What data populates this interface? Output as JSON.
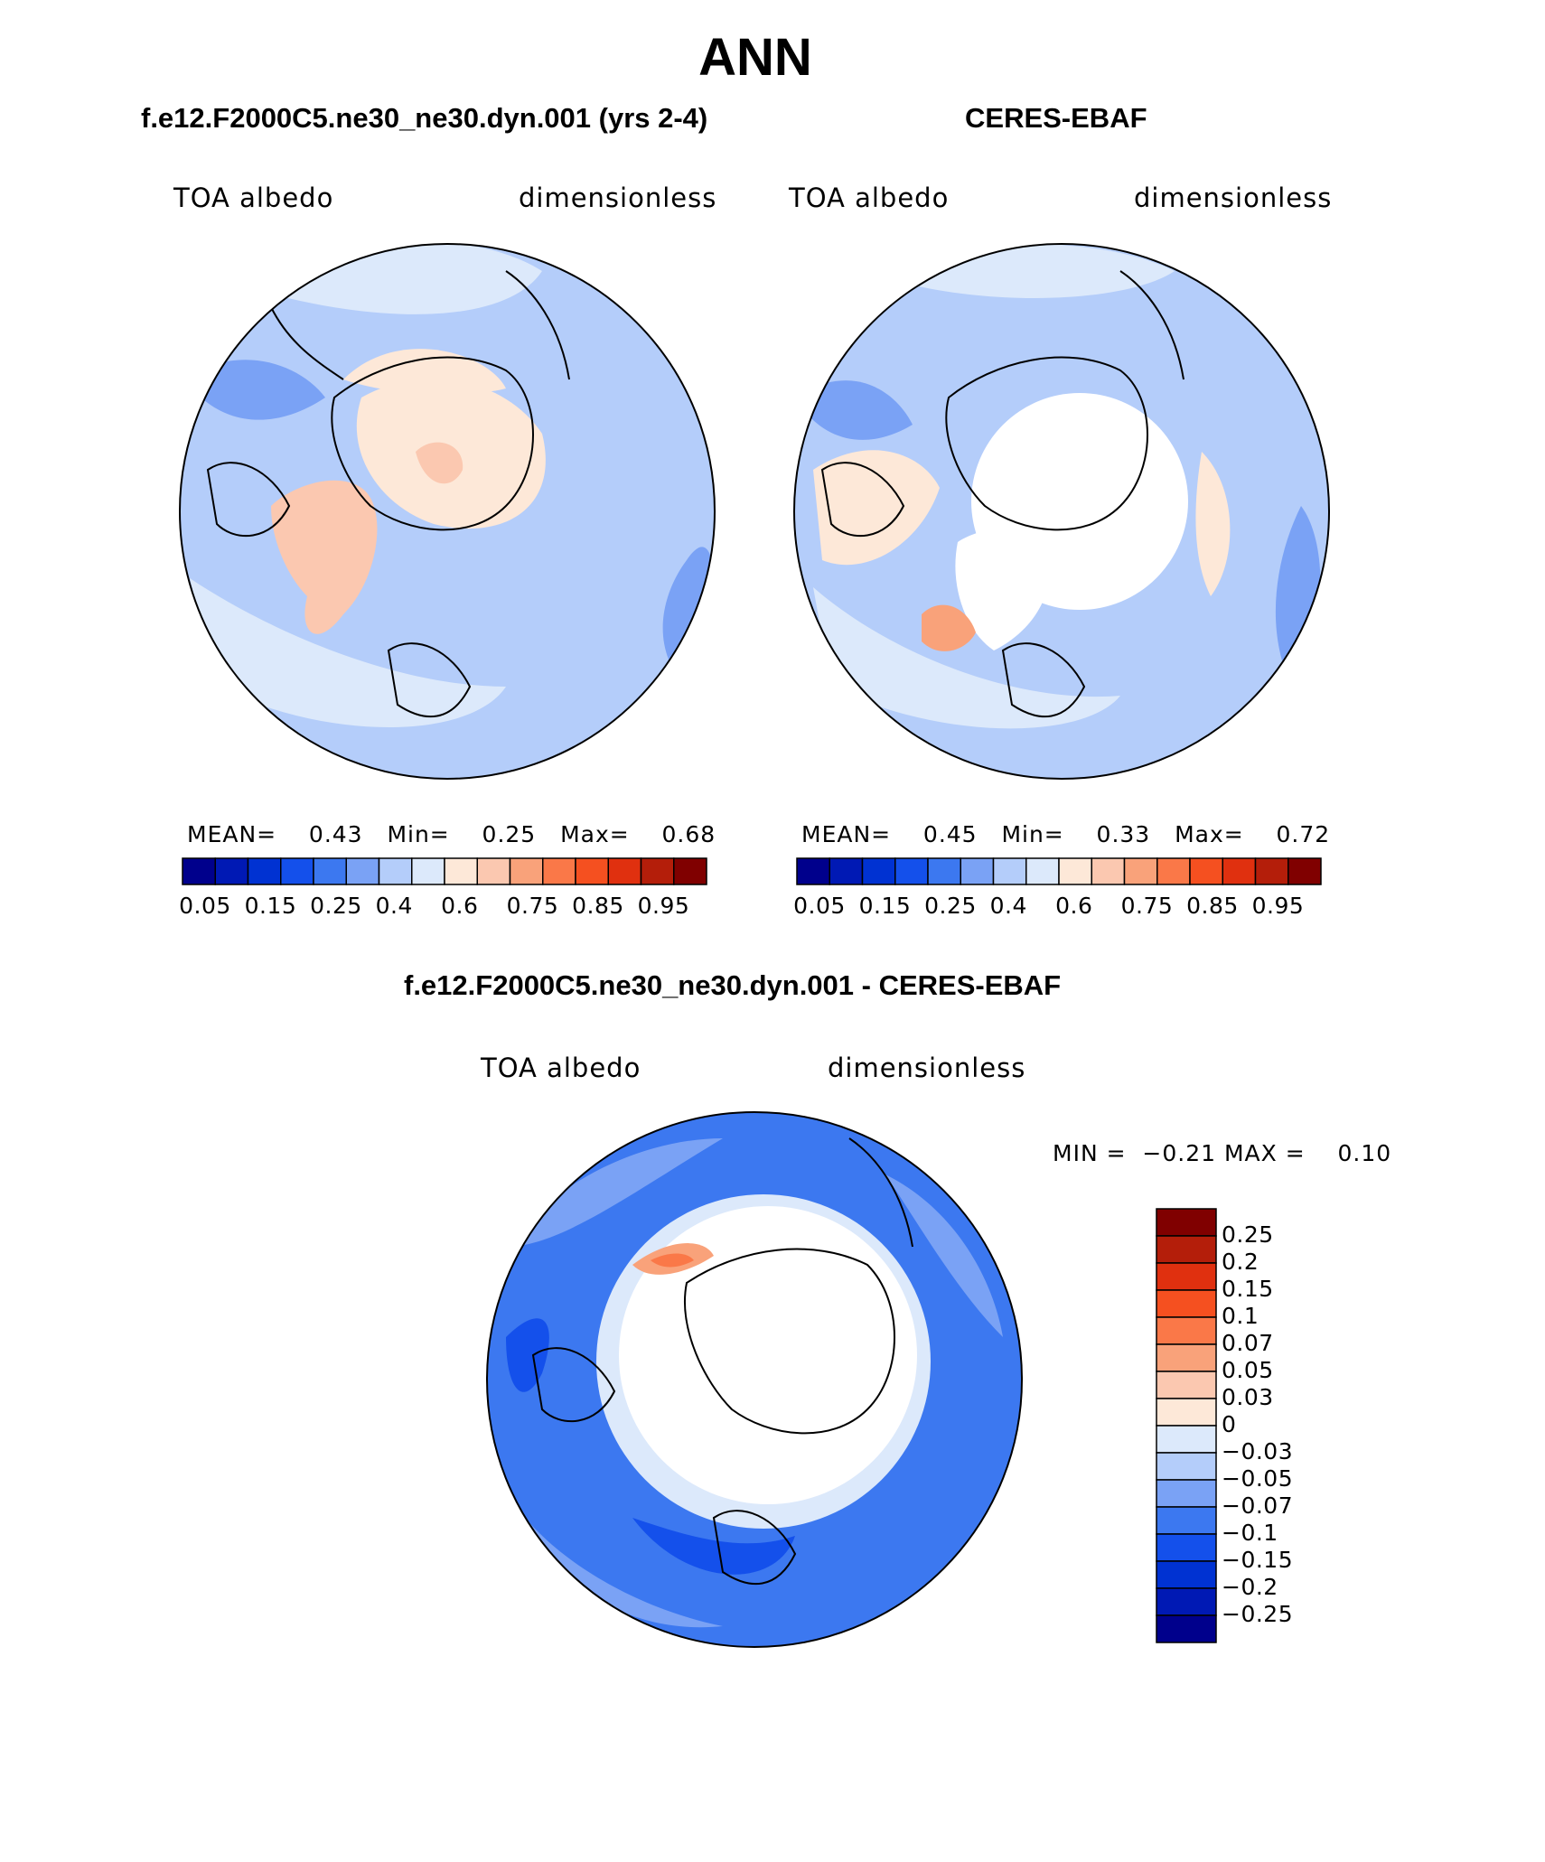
{
  "figure": {
    "title": "ANN"
  },
  "panels": [
    {
      "title": "f.e12.F2000C5.ne30_ne30.dyn.001 (yrs 2-4)",
      "variable": "TOA albedo",
      "units": "dimensionless",
      "stats": {
        "mean_label": "MEAN=",
        "mean": "0.43",
        "min_label": "Min=",
        "min": "0.25",
        "max_label": "Max=",
        "max": "0.68"
      }
    },
    {
      "title": "CERES-EBAF",
      "variable": "TOA albedo",
      "units": "dimensionless",
      "stats": {
        "mean_label": "MEAN=",
        "mean": "0.45",
        "min_label": "Min=",
        "min": "0.33",
        "max_label": "Max=",
        "max": "0.72"
      }
    },
    {
      "title": "f.e12.F2000C5.ne30_ne30.dyn.001 - CERES-EBAF",
      "variable": "TOA albedo",
      "units": "dimensionless",
      "stats_text": "MIN =  −0.21 MAX =    0.10"
    }
  ],
  "colorbar_abs": {
    "colors": [
      "#00008c",
      "#0019b4",
      "#0032d2",
      "#1450eb",
      "#3c78f0",
      "#7aa2f5",
      "#b4cdfa",
      "#dce9fb",
      "#fde8d8",
      "#fbc8b0",
      "#f9a27a",
      "#fa7848",
      "#f55020",
      "#e0300f",
      "#b41e0a",
      "#800000"
    ],
    "ticks": [
      "0.05",
      "0.15",
      "0.25",
      "0.4",
      "0.6",
      "0.75",
      "0.85",
      "0.95"
    ]
  },
  "colorbar_diff": {
    "colors": [
      "#800000",
      "#b41e0a",
      "#e0300f",
      "#f55020",
      "#fa7848",
      "#f9a27a",
      "#fbc8b0",
      "#fde8d8",
      "#dce9fb",
      "#b4cdfa",
      "#7aa2f5",
      "#3c78f0",
      "#1450eb",
      "#0032d2",
      "#0019b4",
      "#00008c"
    ],
    "ticks": [
      "0.25",
      "0.2",
      "0.15",
      "0.1",
      "0.07",
      "0.05",
      "0.03",
      "0",
      "−0.03",
      "−0.05",
      "−0.07",
      "−0.1",
      "−0.15",
      "−0.2",
      "−0.25"
    ]
  }
}
